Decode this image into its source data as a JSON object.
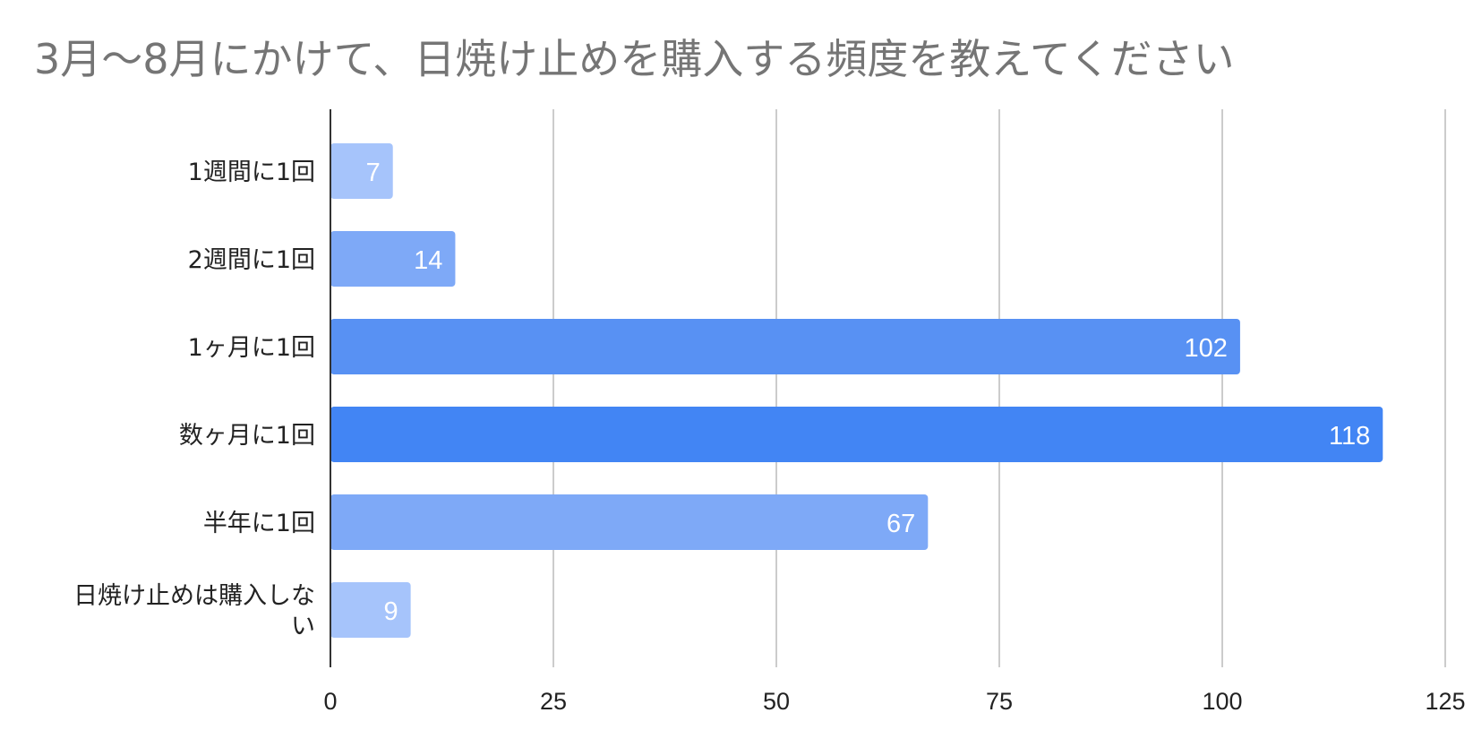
{
  "chart_data": {
    "type": "bar",
    "orientation": "horizontal",
    "title": "3月〜8月にかけて、日焼け止めを購入する頻度を教えてください",
    "categories": [
      [
        "1週間に1回"
      ],
      [
        "2週間に1回"
      ],
      [
        "1ヶ月に1回"
      ],
      [
        "数ヶ月に1回"
      ],
      [
        "半年に1回"
      ],
      [
        "日焼け止めは購入しな",
        "い"
      ]
    ],
    "values": [
      7,
      14,
      102,
      118,
      67,
      9
    ],
    "data_labels": [
      "7",
      "14",
      "102",
      "118",
      "67",
      "9"
    ],
    "bar_colors": [
      "#a6c4fb",
      "#7ea9f7",
      "#5891f3",
      "#4285f4",
      "#7ea9f7",
      "#a6c4fb"
    ],
    "xlim": [
      0,
      125
    ],
    "xticks": [
      0,
      25,
      50,
      75,
      100,
      125
    ],
    "grid": true,
    "legend": "none",
    "gridline_color": "#cccccc",
    "axis_color": "#333333"
  }
}
